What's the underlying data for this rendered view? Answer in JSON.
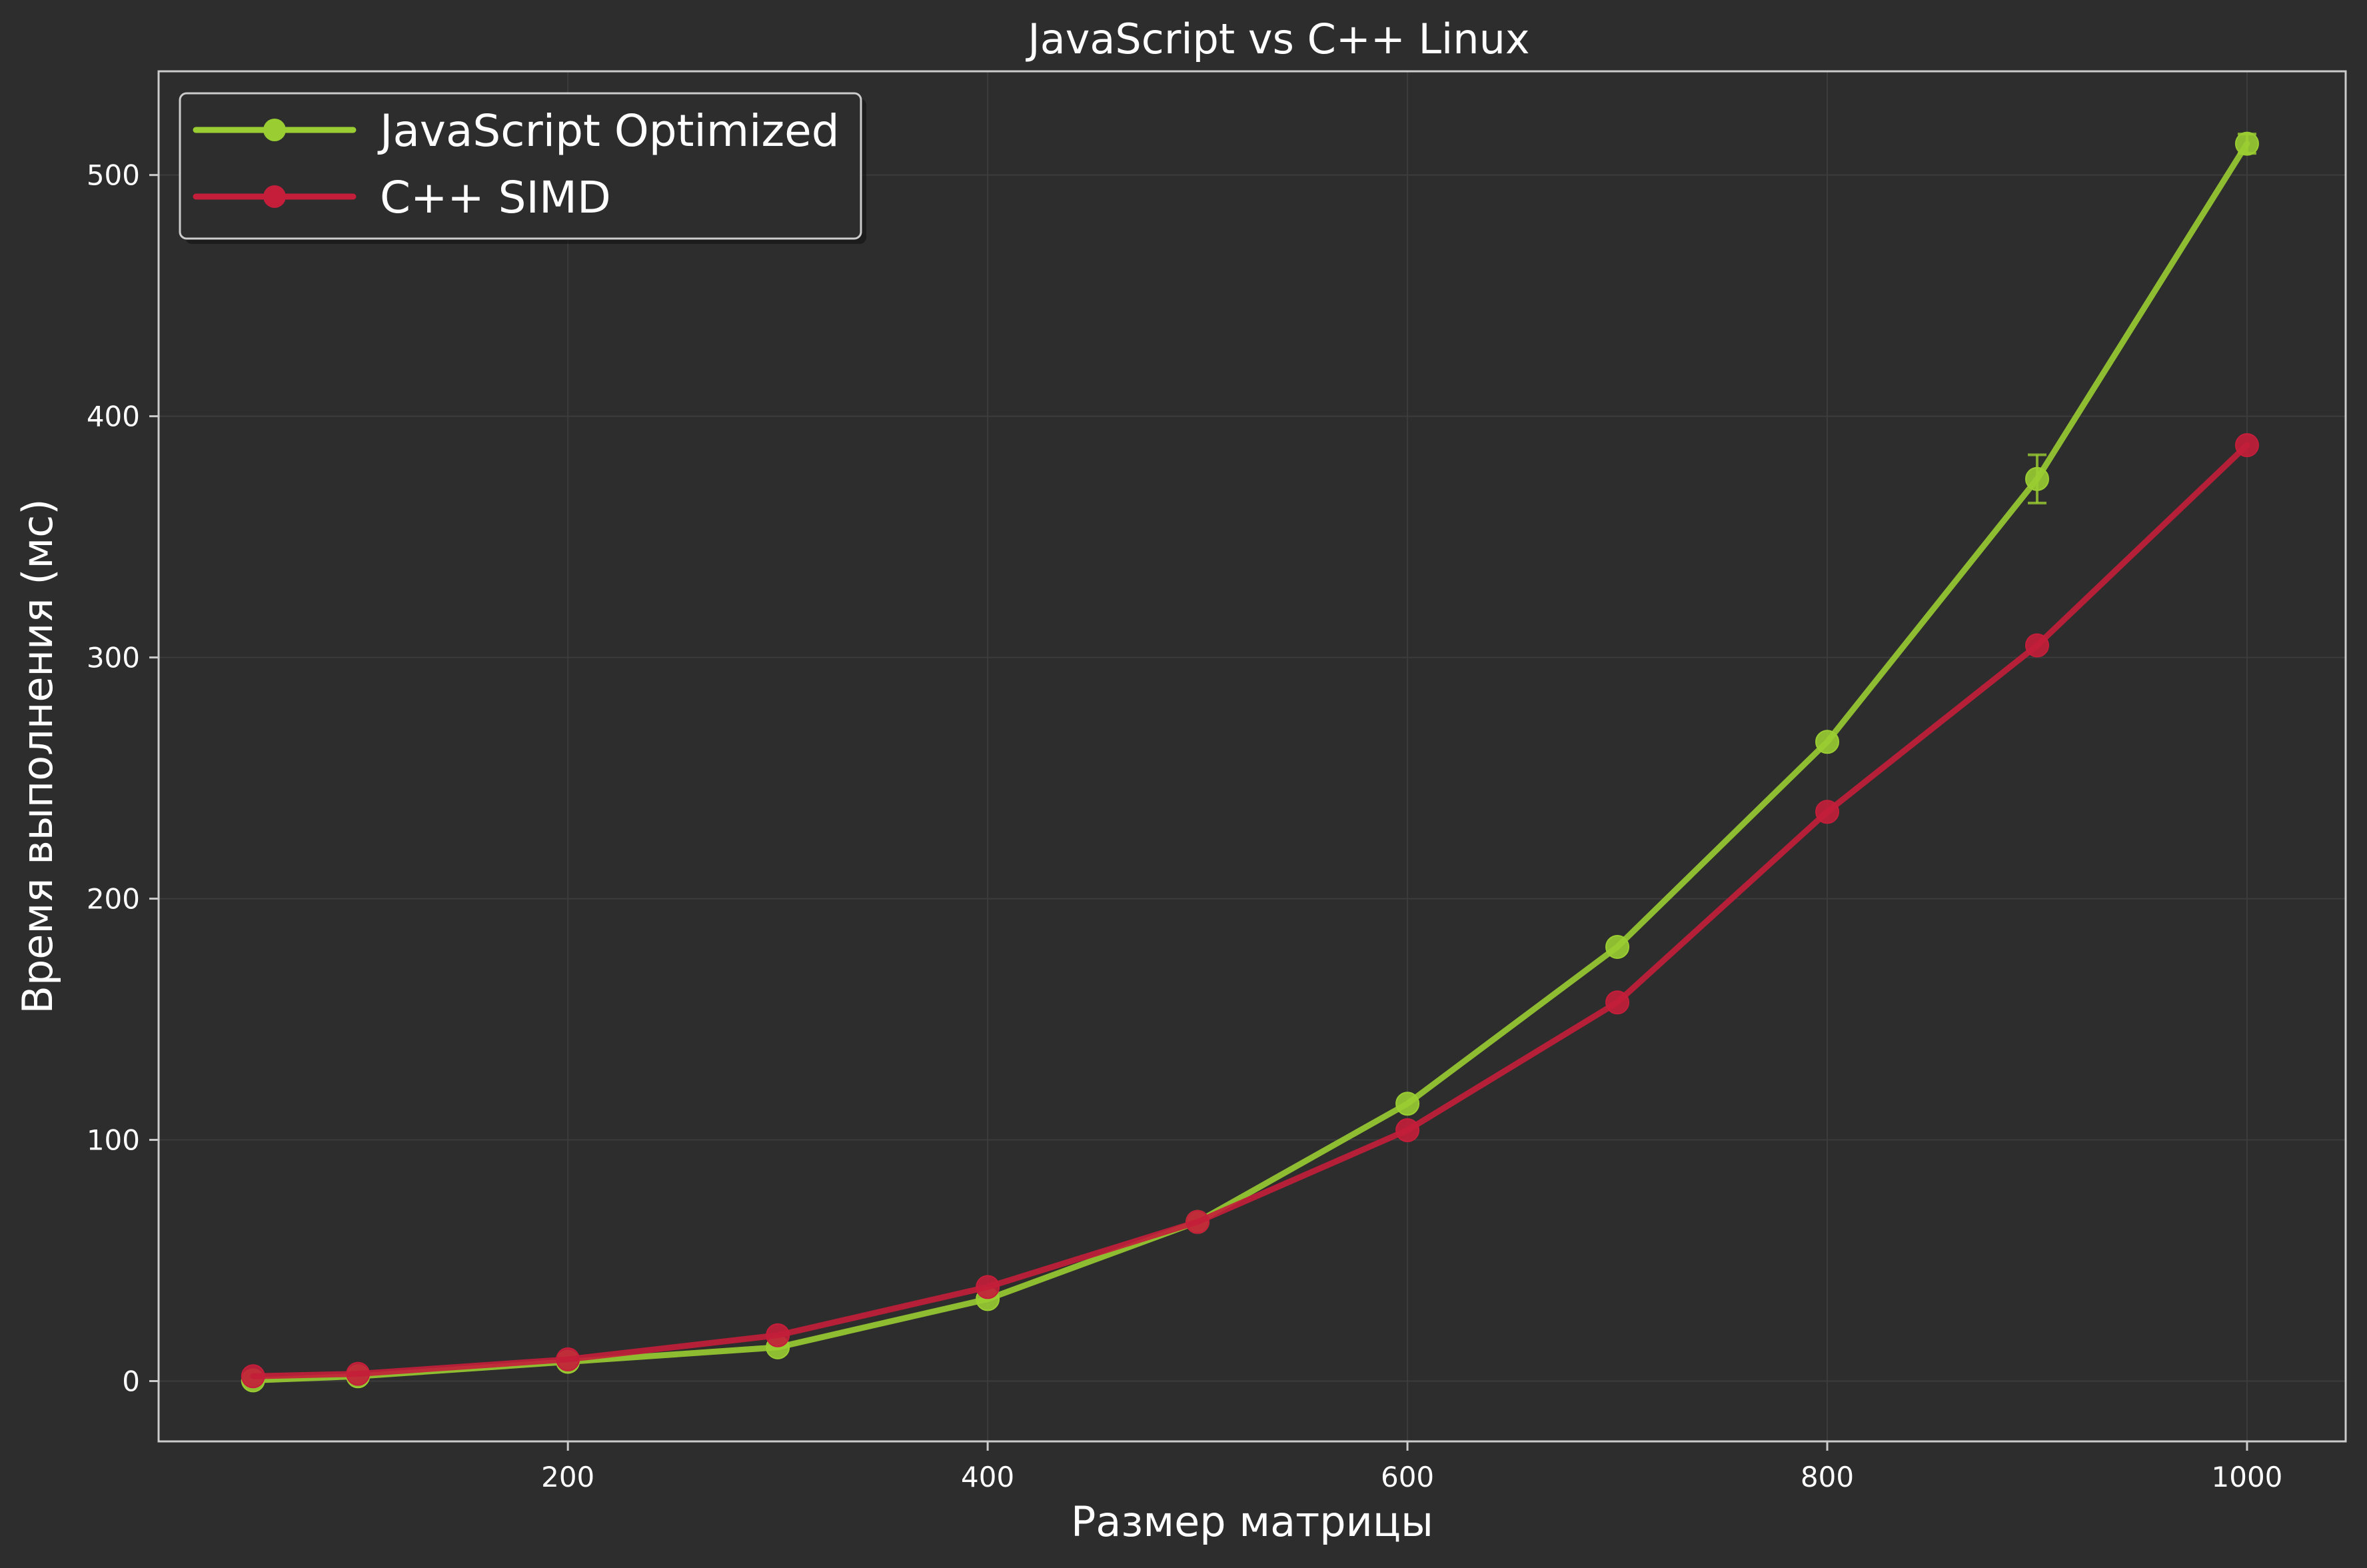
{
  "chart_data": {
    "type": "line",
    "title": "JavaScript vs C++ Linux",
    "xlabel": "Размер матрицы",
    "ylabel": "Время выполнения (мс)",
    "x": [
      50,
      100,
      200,
      300,
      400,
      500,
      600,
      700,
      800,
      900,
      1000
    ],
    "xlim": [
      5,
      1047
    ],
    "ylim": [
      -25,
      543
    ],
    "xticks": [
      200,
      400,
      600,
      800,
      1000
    ],
    "yticks": [
      0,
      100,
      200,
      300,
      400,
      500
    ],
    "grid": true,
    "legend_position": "top-left",
    "series": [
      {
        "name": "JavaScript Optimized",
        "color": "#9acd32",
        "values": [
          0.3,
          2,
          8,
          14,
          34,
          66,
          115,
          180,
          265,
          374,
          513
        ],
        "error": [
          0,
          0,
          0,
          0,
          0,
          0,
          0,
          0,
          0,
          10,
          4
        ]
      },
      {
        "name": "C++ SIMD",
        "color": "#c41e3a",
        "values": [
          2,
          3,
          9,
          19,
          39,
          66,
          104,
          157,
          236,
          305,
          388
        ]
      }
    ]
  },
  "colors": {
    "background": "#2d2d2d",
    "grid": "#3c3c3c",
    "spine": "#cccccc",
    "text": "#ffffff",
    "legend_bg": "#2d2d2d",
    "legend_border": "#cccccc"
  }
}
